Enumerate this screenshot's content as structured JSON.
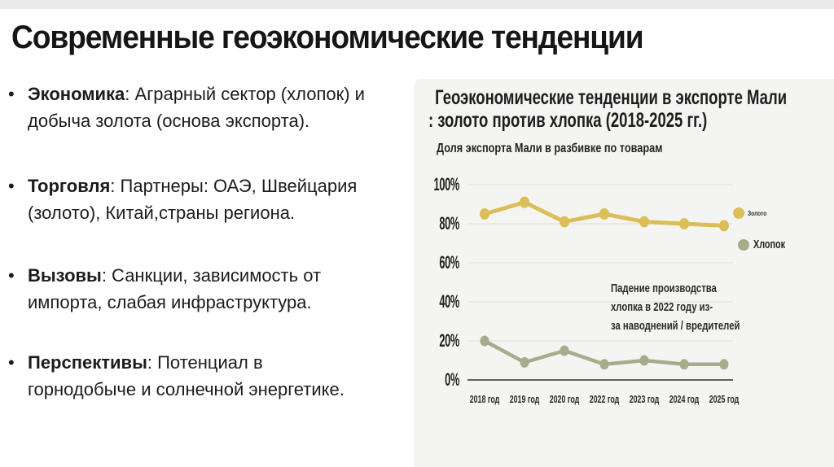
{
  "slide": {
    "title": "Современные геоэкономические тенденции",
    "bullets": [
      {
        "term": "Экономика",
        "rest": ": Аграрный сектор (хлопок) и",
        "line2": "добыча золота (основа экспорта)."
      },
      {
        "term": "Торговля",
        "rest": ": Партнеры: ОАЭ, Швейцария",
        "line2": "(золото), Китай,страны региона."
      },
      {
        "term": "Вызовы",
        "rest": ": Санкции, зависимость от",
        "line2": "импорта, слабая инфраструктура."
      },
      {
        "term": "Перспективы",
        "rest": ": Потенциал в",
        "line2": "горнодобыче и солнечной энергетике."
      }
    ]
  },
  "chart": {
    "title_line1": "Геоэкономические тенденции в экспорте Мали",
    "title_line2": ": золото против хлопка (2018-2025 гг.)",
    "subtitle": "Доля экспорта Мали в разбивке по товарам",
    "annotation_lines": [
      "Падение производства",
      "хлопка в 2022 году из-",
      "за наводнений / вредителей"
    ]
  },
  "chart_data": {
    "type": "line",
    "title": "Геоэкономические тенденции в экспорте Мали : золото против хлопка (2018-2025 гг.)",
    "subtitle": "Доля экспорта Мали в разбивке по товарам",
    "categories": [
      "2018 год",
      "2019 год",
      "2020 год",
      "2022 год",
      "2023 год",
      "2024 год",
      "2025 год"
    ],
    "series": [
      {
        "name": "Золото",
        "color": "#dcbe58",
        "values": [
          85,
          91,
          81,
          85,
          81,
          80,
          79
        ]
      },
      {
        "name": "Хлопок",
        "color": "#a8ab8c",
        "values": [
          20,
          9,
          15,
          8,
          10,
          8,
          8
        ]
      }
    ],
    "y_ticks": [
      "100%",
      "80%",
      "60%",
      "40%",
      "20%",
      "0%"
    ],
    "ylim": [
      0,
      100
    ],
    "grid": true,
    "legend_position": "right",
    "annotation": "Падение производства хлопка в 2022 году из-за наводнений / вредителей"
  },
  "colors": {
    "background": "#ffffff",
    "panel_bg": "#f4f4f2",
    "gridline": "#e2e2de",
    "axis_line": "#2e2e2e",
    "text": "#1c1c1c",
    "gold": "#dcbe58",
    "cotton": "#a8ab8c"
  }
}
